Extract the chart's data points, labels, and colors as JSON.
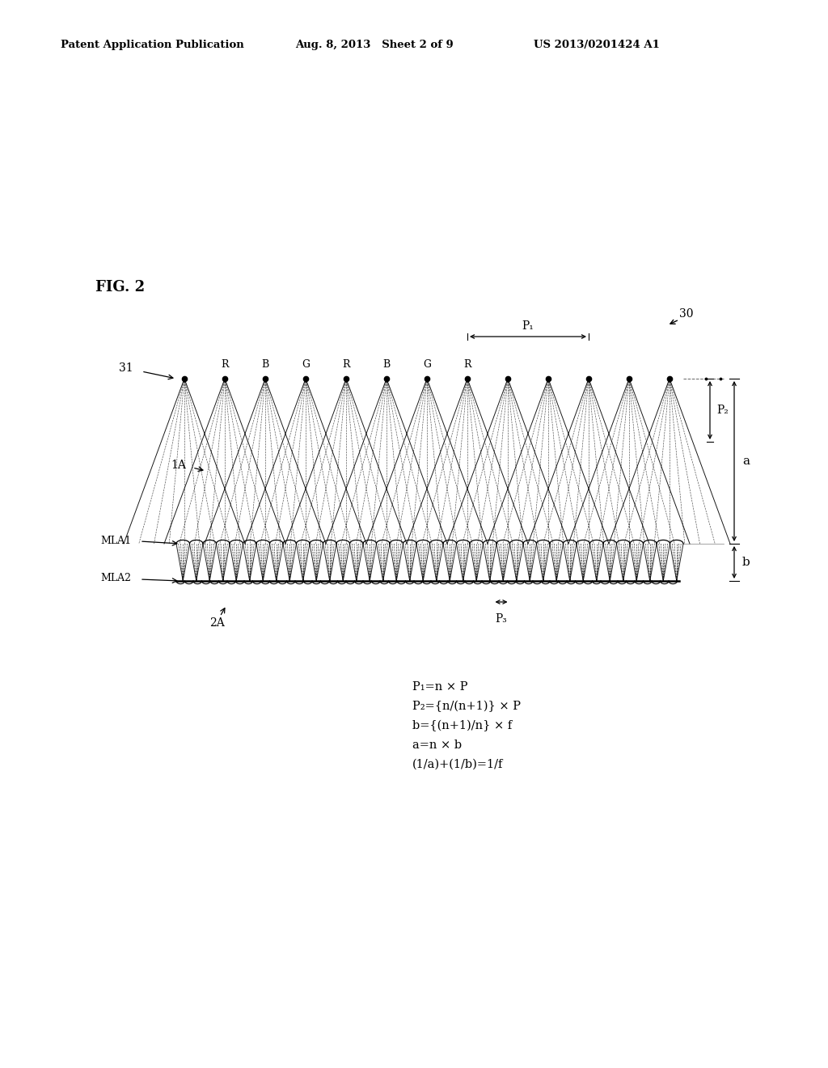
{
  "bg_color": "#ffffff",
  "header_left": "Patent Application Publication",
  "header_mid": "Aug. 8, 2013   Sheet 2 of 9",
  "header_right": "US 2013/0201424 A1",
  "fig_label": "FIG. 2",
  "label_30": "30",
  "label_31": "31",
  "label_1A": "1A",
  "label_MLA1": "MLA1",
  "label_MLA2": "MLA2",
  "label_2A": "2A",
  "label_P1": "P₁",
  "label_P2": "P₂",
  "label_P3": "P₃",
  "label_a": "a",
  "label_b": "b",
  "rgb_labels": [
    "R",
    "B",
    "G",
    "R",
    "B",
    "G",
    "R"
  ],
  "equations": [
    "P₁=n × P",
    "P₂={n/(n+1)} × P",
    "b={(n+1)/n} × f",
    "a=n × b",
    "(1/a)+(1/b)=1/f"
  ]
}
